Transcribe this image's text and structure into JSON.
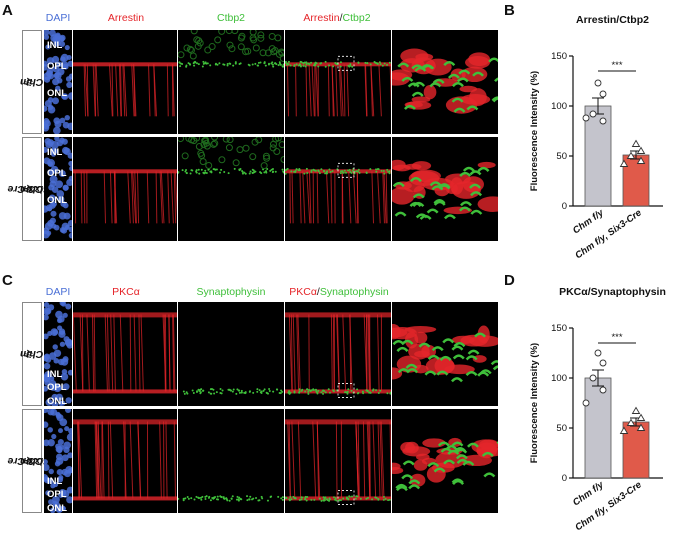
{
  "panels": {
    "A": {
      "letter": "A",
      "channels": [
        "DAPI",
        "Arrestin",
        "Ctbp2"
      ],
      "merge": [
        "Arrestin",
        "/",
        "Ctbp2"
      ],
      "rows": [
        {
          "genotype": "Chm",
          "sup": "f/y"
        },
        {
          "genotype": "Chm",
          "sup": "f/y",
          "suffix": ", Six3-Cre"
        }
      ],
      "layers": [
        "INL",
        "OPL",
        "ONL"
      ]
    },
    "C": {
      "letter": "C",
      "channels": [
        "DAPI",
        "PKCα",
        "Synaptophysin"
      ],
      "merge": [
        "PKCα",
        "/",
        "Synaptophysin"
      ],
      "rows": [
        {
          "genotype": "Chm",
          "sup": "f/y"
        },
        {
          "genotype": "Chm",
          "sup": "f/y",
          "suffix": ", Six3-Cre"
        }
      ],
      "layers": [
        "INL",
        "OPL",
        "ONL"
      ]
    },
    "B": {
      "letter": "B"
    },
    "D": {
      "letter": "D"
    }
  },
  "colors": {
    "control_bar": "#c4c4cc",
    "cre_bar": "#e05a4a",
    "dapi": "#4a6fd6",
    "red": "#e5252a",
    "green": "#3fbf3a"
  },
  "chart_data": [
    {
      "type": "bar",
      "title": "Arrestin/Ctbp2",
      "ylabel": "Fluorescence Intensity (%)",
      "ylim": [
        0,
        150
      ],
      "yticks": [
        0,
        50,
        100,
        150
      ],
      "categories": [
        "Chm f/y",
        "Chm f/y, Six3-Cre"
      ],
      "values": [
        100,
        51
      ],
      "errors": [
        8,
        4
      ],
      "points": [
        [
          123,
          112,
          92,
          85,
          88
        ],
        [
          62,
          55,
          50,
          45,
          42
        ]
      ],
      "significance": "***"
    },
    {
      "type": "bar",
      "title": "PKCα/Synaptophysin",
      "ylabel": "Fluorescence Intensity (%)",
      "ylim": [
        0,
        150
      ],
      "yticks": [
        0,
        50,
        100,
        150
      ],
      "categories": [
        "Chm f/y",
        "Chm f/y, Six3-Cre"
      ],
      "values": [
        100,
        56
      ],
      "errors": [
        8,
        4
      ],
      "points": [
        [
          125,
          115,
          100,
          88,
          75
        ],
        [
          67,
          60,
          55,
          50,
          47
        ]
      ],
      "significance": "***"
    }
  ]
}
